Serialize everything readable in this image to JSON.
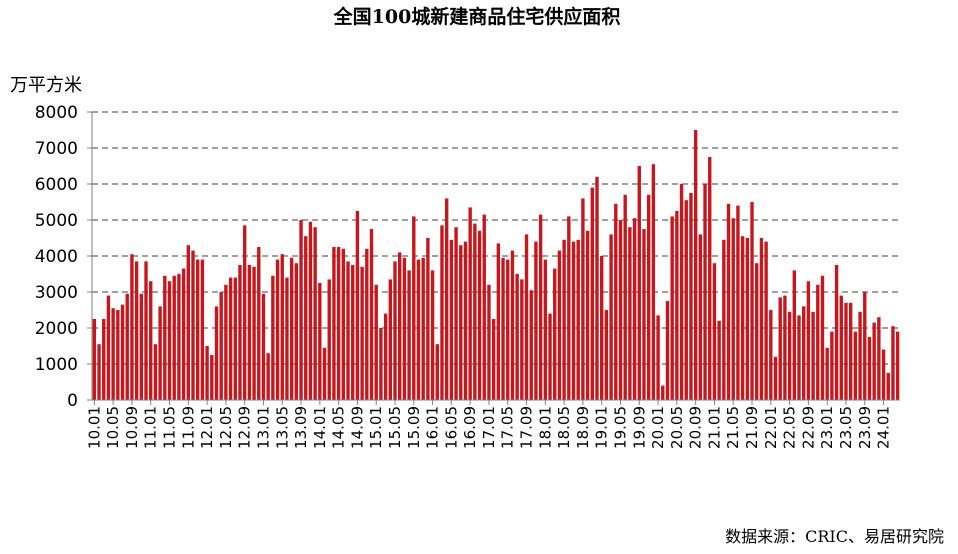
{
  "chart_data": {
    "type": "bar",
    "title": "全国100城新建商品住宅供应面积",
    "ylabel": "万平方米",
    "source": "数据来源：CRIC、易居研究院",
    "ylim": [
      0,
      8000
    ],
    "yticks": [
      0,
      1000,
      2000,
      3000,
      4000,
      5000,
      6000,
      7000,
      8000
    ],
    "grid": "horizontal-dashed",
    "bar_color": "#c8161d",
    "x_tick_labels": [
      "10.01",
      "10.05",
      "10.09",
      "11.01",
      "11.05",
      "11.09",
      "12.01",
      "12.05",
      "12.09",
      "13.01",
      "13.05",
      "13.09",
      "14.01",
      "14.05",
      "14.09",
      "15.01",
      "15.05",
      "15.09",
      "16.01",
      "16.05",
      "16.09",
      "17.01",
      "17.05",
      "17.09",
      "18.01",
      "18.05",
      "18.09",
      "19.01",
      "19.05",
      "19.09",
      "20.01",
      "20.05",
      "20.09",
      "21.01",
      "21.05",
      "21.09",
      "22.01",
      "22.05",
      "22.09",
      "23.01",
      "23.05",
      "23.09",
      "24.01"
    ],
    "series": [
      {
        "values": [
          2250,
          1550,
          2250,
          2900,
          2550,
          2500,
          2650,
          2950,
          4050,
          3850,
          2950,
          3850,
          3300,
          1550,
          2600,
          3450,
          3300,
          3450,
          3500,
          3650,
          4300,
          4150,
          3900,
          3900,
          1500,
          1250,
          2600,
          3000,
          3200,
          3400,
          3400,
          3750,
          4850,
          3750,
          3700,
          4250,
          2950,
          1300,
          3450,
          3900,
          4050,
          3400,
          3950,
          3800,
          5000,
          4550,
          4950,
          4800,
          3250,
          1450,
          3350,
          4250,
          4250,
          4200,
          3850,
          3750,
          5250,
          3700,
          4200,
          4750,
          3200,
          2000,
          2400,
          3350,
          3850,
          4100,
          3950,
          3600,
          5100,
          3900,
          3950,
          4500,
          3600,
          1550,
          4850,
          5600,
          4450,
          4800,
          4300,
          4400,
          5350,
          4900,
          4700,
          5150,
          3200,
          2250,
          4350,
          3950,
          3900,
          4150,
          3500,
          3350,
          4600,
          3050,
          4400,
          5150,
          3900,
          2400,
          3650,
          4150,
          4450,
          5100,
          4400,
          4450,
          5600,
          4700,
          5900,
          6200,
          4000,
          2500,
          4600,
          5450,
          5000,
          5700,
          4800,
          5050,
          6500,
          4750,
          5700,
          6550,
          2350,
          400,
          2750,
          5100,
          5250,
          6000,
          5550,
          5750,
          7500,
          4600,
          6000,
          6750,
          3800,
          2200,
          4450,
          5450,
          5050,
          5400,
          4550,
          4500,
          5500,
          3800,
          4500,
          4400,
          2500,
          1200,
          2850,
          2900,
          2450,
          3600,
          2350,
          2600,
          3300,
          2450,
          3200,
          3450,
          1450,
          1900,
          3750,
          2900,
          2700,
          2700,
          1900,
          2450,
          3000,
          1750,
          2150,
          2300,
          1400,
          750,
          2050,
          1900
        ]
      }
    ]
  }
}
